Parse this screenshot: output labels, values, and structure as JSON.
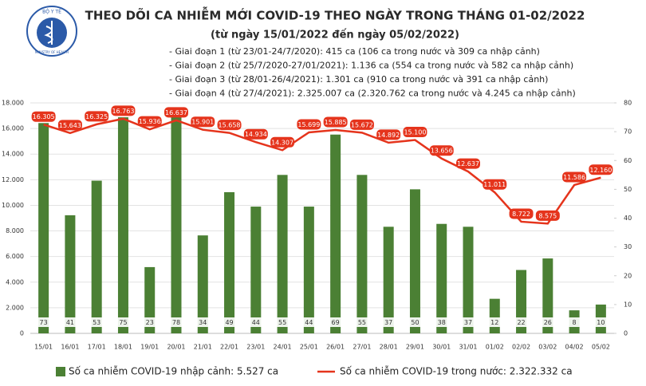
{
  "logo": {
    "top": "BỘ Y TẾ",
    "bottom": "MINISTRY OF HEALTH"
  },
  "chart_data": {
    "type": "combo",
    "title": "THEO DÕI CA NHIỄM MỚI COVID-19 THEO NGÀY TRONG THÁNG 01-02/2022",
    "subtitle": "(từ ngày 15/01/2022 đến ngày 05/02/2022)",
    "notes": [
      "- Giai đoạn 1 (từ 23/01-24/7/2020): 415 ca (106 ca trong nước và 309 ca nhập cảnh)",
      "- Giai đoạn 2 (từ 25/7/2020-27/01/2021): 1.136 ca (554 ca trong nước và 582 ca nhập cảnh)",
      "- Giai đoạn 3 (từ 28/01-26/4/2021): 1.301 ca (910 ca trong nước và 391 ca nhập cảnh)",
      "- Giai đoạn 4 (từ 27/4/2021): 2.325.007 ca (2.320.762 ca trong nước và 4.245 ca nhập cảnh)"
    ],
    "categories": [
      "15/01",
      "16/01",
      "17/01",
      "18/01",
      "19/01",
      "20/01",
      "21/01",
      "22/01",
      "23/01",
      "24/01",
      "25/01",
      "26/01",
      "27/01",
      "28/01",
      "29/01",
      "30/01",
      "31/01",
      "01/02",
      "02/02",
      "03/02",
      "04/02",
      "05/02"
    ],
    "series": [
      {
        "name": "Số ca nhiễm COVID-19 nhập cảnh: 5.527 ca",
        "type": "bar",
        "axis": "y2",
        "color": "#4b8034",
        "values": [
          73,
          41,
          53,
          75,
          23,
          78,
          34,
          49,
          44,
          55,
          44,
          69,
          55,
          37,
          50,
          38,
          37,
          12,
          22,
          26,
          8,
          10
        ]
      },
      {
        "name": "Số ca nhiễm COVID-19 trong nước: 2.322.332 ca",
        "type": "line",
        "color": "#e5341c",
        "values": [
          16305,
          15643,
          16325,
          16763,
          15936,
          16637,
          15901,
          15658,
          14934,
          14307,
          15699,
          15885,
          15672,
          14892,
          15100,
          13656,
          12637,
          11011,
          8722,
          8575,
          11586,
          12160
        ],
        "value_labels": [
          "16.305",
          "15.643",
          "16.325",
          "16.763",
          "15.936",
          "16.637",
          "15.901",
          "15.658",
          "14.934",
          "14.307",
          "15.699",
          "15.885",
          "15.672",
          "14.892",
          "15.100",
          "13.656",
          "12.637",
          "11.011",
          "8.722",
          "8.575",
          "11.586",
          "12.160"
        ]
      }
    ],
    "ylim": [
      0,
      18000
    ],
    "yticks": [
      0,
      {
        "value": 2000,
        "label": "2.000"
      },
      {
        "value": 4000,
        "label": "4.000"
      },
      {
        "value": 6000,
        "label": "6.000"
      },
      {
        "value": 8000,
        "label": "8.000"
      },
      {
        "value": 10000,
        "label": "10.000"
      },
      {
        "value": 12000,
        "label": "12.000"
      },
      {
        "value": 14000,
        "label": "14.000"
      },
      {
        "value": 16000,
        "label": "16.000"
      },
      {
        "value": 18000,
        "label": "18.000"
      }
    ],
    "y2lim": [
      0,
      80
    ],
    "y2ticks": [
      0,
      10,
      20,
      30,
      40,
      50,
      60,
      70,
      80
    ],
    "grid": true
  }
}
